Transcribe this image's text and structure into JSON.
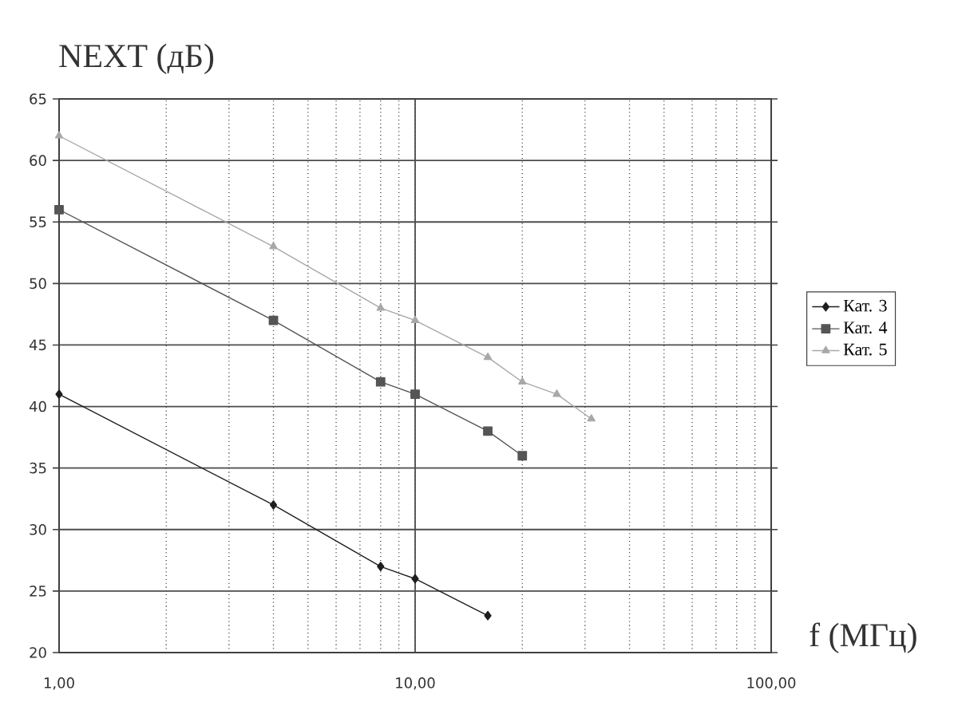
{
  "chart_data": {
    "type": "line",
    "xlabel": "f (МГц)",
    "ylabel": "NEXT (дБ)",
    "series": [
      {
        "name": "Кат. 3",
        "color": "#1e1e1e",
        "marker": "diamond",
        "x": [
          1,
          4,
          8,
          10,
          16
        ],
        "values": [
          41,
          32,
          27,
          26,
          23
        ]
      },
      {
        "name": "Кат. 4",
        "color": "#555555",
        "marker": "square",
        "x": [
          1,
          4,
          8,
          10,
          16,
          20
        ],
        "values": [
          56,
          47,
          42,
          41,
          38,
          36
        ]
      },
      {
        "name": "Кат. 5",
        "color": "#a8a8a8",
        "marker": "triangle",
        "x": [
          1,
          4,
          8,
          10,
          16,
          20,
          25,
          31.25
        ],
        "values": [
          62,
          53,
          48,
          47,
          44,
          42,
          41,
          39
        ]
      }
    ],
    "xlim": [
      1,
      100
    ],
    "ylim": [
      20,
      65
    ],
    "xticks": [
      {
        "value": 1,
        "label": "1,00"
      },
      {
        "value": 10,
        "label": "10,00"
      },
      {
        "value": 100,
        "label": "100,00"
      }
    ],
    "yticks": [
      20,
      25,
      30,
      35,
      40,
      45,
      50,
      55,
      60,
      65
    ],
    "log": "x",
    "grid": true,
    "legend": "right",
    "line_style": "solid"
  }
}
